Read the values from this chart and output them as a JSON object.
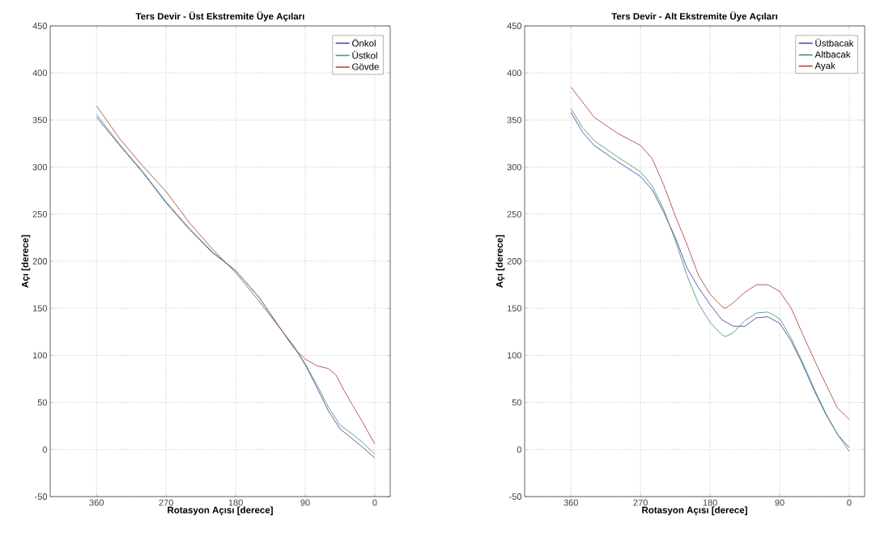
{
  "chart_data": [
    {
      "type": "line",
      "title": "Ters Devir - Üst Ekstremite Üye Açıları",
      "xlabel": "Rotasyon Açısı [derece]",
      "ylabel": "Açı [derece]",
      "x": [
        360,
        330,
        300,
        270,
        240,
        210,
        180,
        150,
        120,
        105,
        90,
        75,
        60,
        45,
        30,
        15,
        0
      ],
      "series": [
        {
          "name": "Önkol",
          "color": "#4b4ba8",
          "values": [
            353,
            323,
            294,
            262,
            234,
            209,
            190,
            162,
            126,
            110,
            90,
            66,
            41,
            22,
            12,
            2,
            -9
          ]
        },
        {
          "name": "Üstkol",
          "color": "#4a9a78",
          "values": [
            356,
            324,
            295,
            263,
            235,
            210,
            190,
            162,
            126,
            110,
            91,
            69,
            45,
            26,
            17,
            7,
            -5
          ]
        },
        {
          "name": "Gövde",
          "color": "#b84848",
          "x": [
            360,
            330,
            300,
            270,
            240,
            210,
            180,
            150,
            120,
            105,
            90,
            75,
            60,
            50,
            40,
            20,
            0
          ],
          "values": [
            365,
            330,
            301,
            274,
            241,
            213,
            188,
            158,
            126,
            108,
            96,
            89,
            86,
            79,
            63,
            35,
            6
          ]
        }
      ],
      "xlim": [
        420,
        -20
      ],
      "ylim": [
        -50,
        450
      ],
      "xticks": [
        360,
        270,
        180,
        90,
        0
      ],
      "yticks": [
        -50,
        0,
        50,
        100,
        150,
        200,
        250,
        300,
        350,
        400,
        450
      ],
      "grid": true,
      "legend": "top right",
      "line_style": "solid"
    },
    {
      "type": "line",
      "title": "Ters Devir - Alt Ekstremite Üye Açıları",
      "xlabel": "Rotasyon Açısı [derece]",
      "ylabel": "Açı [derece]",
      "x": [
        360,
        345,
        330,
        300,
        270,
        255,
        240,
        225,
        210,
        195,
        180,
        165,
        160,
        150,
        135,
        120,
        105,
        90,
        75,
        60,
        45,
        30,
        15,
        0
      ],
      "series": [
        {
          "name": "Üstbacak",
          "color": "#4b4ba8",
          "x": [
            360,
            345,
            330,
            300,
            270,
            255,
            240,
            225,
            210,
            195,
            180,
            165,
            150,
            135,
            120,
            105,
            90,
            75,
            60,
            45,
            30,
            15,
            0
          ],
          "values": [
            358,
            337,
            323,
            306,
            290,
            276,
            252,
            225,
            193,
            172,
            154,
            138,
            131,
            131,
            140,
            141,
            134,
            115,
            90,
            62,
            37,
            16,
            2
          ]
        },
        {
          "name": "Altbacak",
          "color": "#4a9a78",
          "values": [
            362,
            342,
            328,
            311,
            295,
            280,
            255,
            222,
            185,
            155,
            135,
            122,
            120,
            124,
            137,
            145,
            146,
            139,
            118,
            92,
            64,
            38,
            16,
            -2
          ]
        },
        {
          "name": "Ayak",
          "color": "#b84848",
          "values": [
            385,
            369,
            353,
            336,
            323,
            309,
            281,
            248,
            218,
            185,
            165,
            152,
            150,
            156,
            167,
            175,
            175,
            168,
            150,
            122,
            95,
            69,
            44,
            32
          ]
        }
      ],
      "xlim": [
        420,
        -20
      ],
      "ylim": [
        -50,
        450
      ],
      "xticks": [
        360,
        270,
        180,
        90,
        0
      ],
      "yticks": [
        -50,
        0,
        50,
        100,
        150,
        200,
        250,
        300,
        350,
        400,
        450
      ],
      "grid": true,
      "legend": "top right",
      "line_style": "solid"
    }
  ]
}
